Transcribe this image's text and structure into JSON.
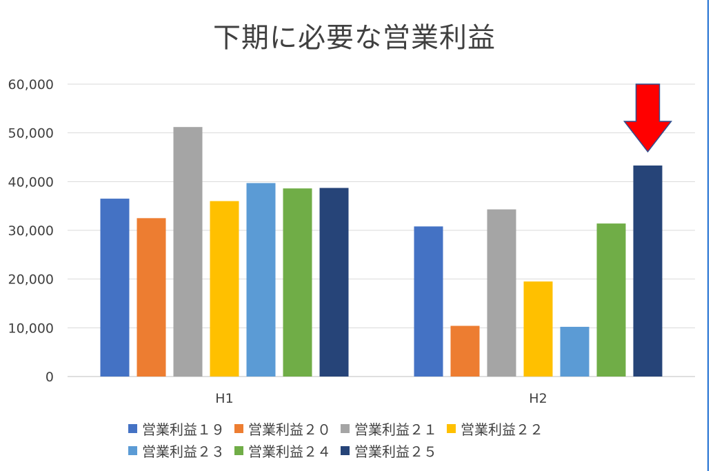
{
  "chart_data": {
    "type": "bar",
    "title": "下期に必要な営業利益",
    "categories": [
      "H1",
      "H2"
    ],
    "ylim": [
      0,
      60000
    ],
    "yticks": [
      "0",
      "10,000",
      "20,000",
      "30,000",
      "40,000",
      "50,000",
      "60,000"
    ],
    "ytick_values": [
      0,
      10000,
      20000,
      30000,
      40000,
      50000,
      60000
    ],
    "grid": true,
    "legend_position": "bottom",
    "series": [
      {
        "name": "営業利益１９",
        "color": "#4472c4",
        "values": [
          36500,
          30800
        ]
      },
      {
        "name": "営業利益２０",
        "color": "#ed7d31",
        "values": [
          32500,
          10400
        ]
      },
      {
        "name": "営業利益２１",
        "color": "#a5a5a5",
        "values": [
          51200,
          34300
        ]
      },
      {
        "name": "営業利益２２",
        "color": "#ffc000",
        "values": [
          36000,
          19500
        ]
      },
      {
        "name": "営業利益２３",
        "color": "#5b9bd5",
        "values": [
          39700,
          10200
        ]
      },
      {
        "name": "営業利益２４",
        "color": "#70ad47",
        "values": [
          38600,
          31400
        ]
      },
      {
        "name": "営業利益２５",
        "color": "#264478",
        "values": [
          38700,
          43300
        ]
      }
    ],
    "annotation": {
      "type": "arrow-down",
      "color": "#ff0000",
      "target_series": "営業利益２５",
      "target_category": "H2"
    }
  }
}
